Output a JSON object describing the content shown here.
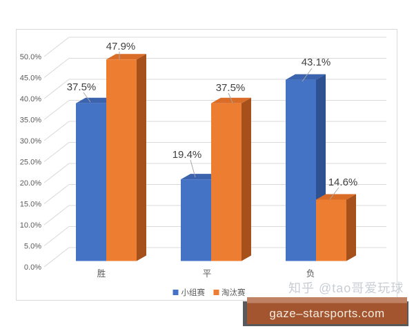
{
  "chart_data": {
    "type": "bar",
    "style": "3d-clustered-column",
    "title": "",
    "xlabel": "",
    "ylabel": "",
    "categories": [
      "胜",
      "平",
      "负"
    ],
    "series": [
      {
        "name": "小组赛",
        "color": "#4472C4",
        "color_top": "#3B63AE",
        "color_side": "#2D5191",
        "values": [
          37.5,
          19.4,
          43.1
        ]
      },
      {
        "name": "淘汰赛",
        "color": "#ED7D31",
        "color_top": "#D96C26",
        "color_side": "#A6511C",
        "values": [
          47.9,
          37.5,
          14.6
        ]
      }
    ],
    "data_labels": [
      "37.5%",
      "47.9%",
      "19.4%",
      "37.5%",
      "43.1%",
      "14.6%"
    ],
    "y_ticks": [
      "0.0%",
      "5.0%",
      "10.0%",
      "15.0%",
      "20.0%",
      "25.0%",
      "30.0%",
      "35.0%",
      "40.0%",
      "45.0%",
      "50.0%"
    ],
    "ylim": [
      0,
      50
    ],
    "grid": true,
    "grid_color": "#D9D9D9",
    "leader_line_color": "#A6A6A6",
    "tick_label_color": "#595959",
    "data_label_color": "#3F3F3F",
    "legend_position": "bottom"
  },
  "legend": {
    "items": [
      {
        "label": "小组赛",
        "color": "#4472C4"
      },
      {
        "label": "淘汰赛",
        "color": "#ED7D31"
      }
    ]
  },
  "watermark": {
    "text": "知乎 @tao哥爱玩球",
    "color": "#C8CDD3"
  },
  "banner": {
    "text": "gaze–starsports.com",
    "bg": "#A2552E",
    "bg_top": "#BF8264",
    "shadow": "#58595B",
    "text_color": "#F6ECE2"
  }
}
